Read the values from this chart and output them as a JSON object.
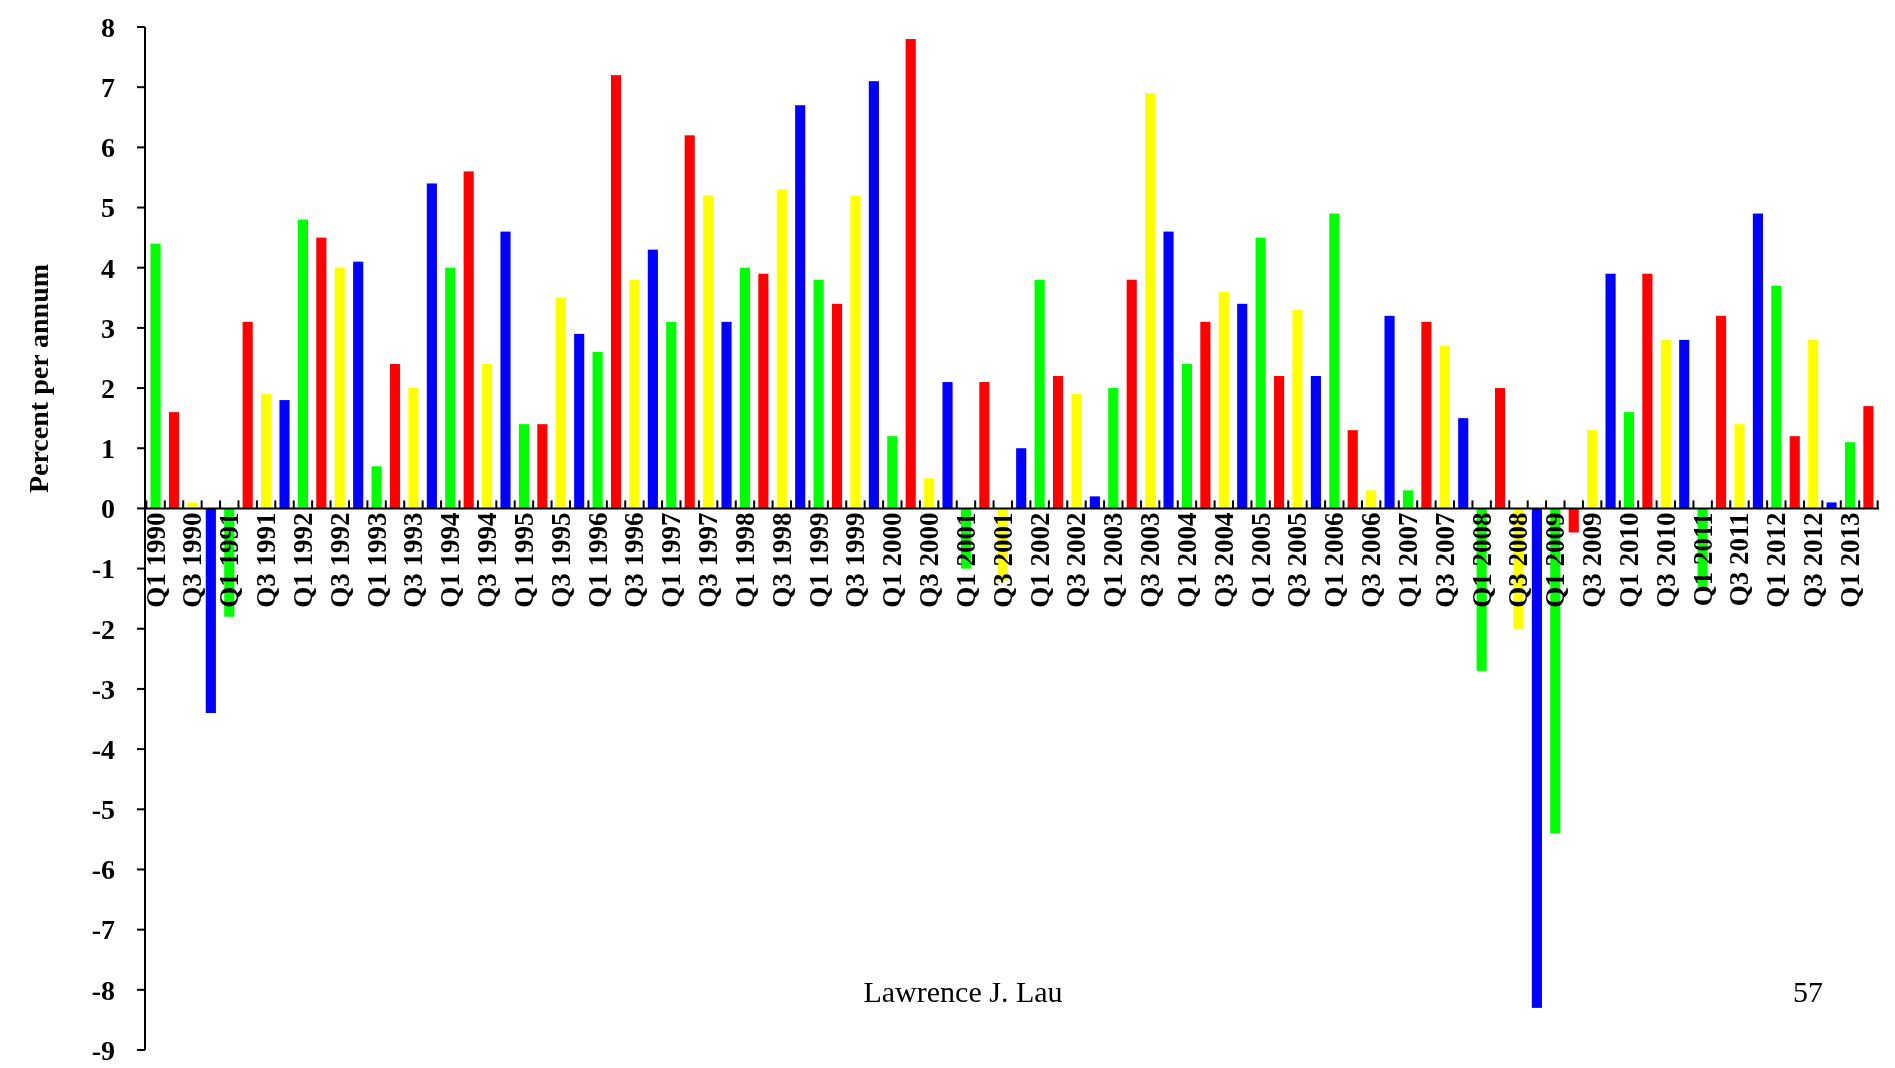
{
  "chart_data": {
    "type": "bar",
    "ylabel": "Percent per annum",
    "categories": [
      "Q1 1990",
      null,
      "Q3 1990",
      null,
      "Q1 1991",
      null,
      "Q3 1991",
      null,
      "Q1 1992",
      null,
      "Q3 1992",
      null,
      "Q1 1993",
      null,
      "Q3 1993",
      null,
      "Q1 1994",
      null,
      "Q3 1994",
      null,
      "Q1 1995",
      null,
      "Q3 1995",
      null,
      "Q1 1996",
      null,
      "Q3 1996",
      null,
      "Q1 1997",
      null,
      "Q3 1997",
      null,
      "Q1 1998",
      null,
      "Q3 1998",
      null,
      "Q1 1999",
      null,
      "Q3 1999",
      null,
      "Q1 2000",
      null,
      "Q3 2000",
      null,
      "Q1 2001",
      null,
      "Q3 2001",
      null,
      "Q1 2002",
      null,
      "Q3 2002",
      null,
      "Q1 2003",
      null,
      "Q3 2003",
      null,
      "Q1 2004",
      null,
      "Q3 2004",
      null,
      "Q1 2005",
      null,
      "Q3 2005",
      null,
      "Q1 2006",
      null,
      "Q3 2006",
      null,
      "Q1 2007",
      null,
      "Q3 2007",
      null,
      "Q1 2008",
      null,
      "Q3 2008",
      null,
      "Q1 2009",
      null,
      "Q3 2009",
      null,
      "Q1 2010",
      null,
      "Q3 2010",
      null,
      "Q1 2011",
      null,
      "Q3 2011",
      null,
      "Q1 2012",
      null,
      "Q3 2012",
      null,
      "Q1 2013",
      null
    ],
    "values": [
      4.4,
      1.6,
      0.1,
      -3.4,
      -1.8,
      3.1,
      1.9,
      1.8,
      4.8,
      4.5,
      4.0,
      4.1,
      0.7,
      2.4,
      2.0,
      5.4,
      4.0,
      5.6,
      2.4,
      4.6,
      1.4,
      1.4,
      3.5,
      2.9,
      2.6,
      7.2,
      3.8,
      4.3,
      3.1,
      6.2,
      5.2,
      3.1,
      4.0,
      3.9,
      5.3,
      6.7,
      3.8,
      3.4,
      5.2,
      7.1,
      1.2,
      7.8,
      0.5,
      2.1,
      -1.0,
      2.1,
      -1.2,
      1.0,
      3.8,
      2.2,
      1.9,
      0.2,
      2.0,
      3.8,
      6.9,
      4.6,
      2.4,
      3.1,
      3.6,
      3.4,
      4.5,
      2.2,
      3.3,
      2.2,
      4.9,
      1.3,
      0.3,
      3.2,
      0.3,
      3.1,
      2.7,
      1.5,
      -2.7,
      2.0,
      -2.0,
      -8.3,
      -5.4,
      -0.4,
      1.3,
      3.9,
      1.6,
      3.9,
      2.8,
      2.8,
      -1.3,
      3.2,
      1.4,
      4.9,
      3.7,
      1.2,
      2.8,
      0.1,
      1.1,
      1.7
    ],
    "colors": [
      "#00ff00",
      "#ff0000",
      "#ffff00",
      "#0000ff",
      "#00ff00",
      "#ff0000",
      "#ffff00",
      "#0000ff",
      "#00ff00",
      "#ff0000",
      "#ffff00",
      "#0000ff",
      "#00ff00",
      "#ff0000",
      "#ffff00",
      "#0000ff",
      "#00ff00",
      "#ff0000",
      "#ffff00",
      "#0000ff",
      "#00ff00",
      "#ff0000",
      "#ffff00",
      "#0000ff",
      "#00ff00",
      "#ff0000",
      "#ffff00",
      "#0000ff",
      "#00ff00",
      "#ff0000",
      "#ffff00",
      "#0000ff",
      "#00ff00",
      "#ff0000",
      "#ffff00",
      "#0000ff",
      "#00ff00",
      "#ff0000",
      "#ffff00",
      "#0000ff",
      "#00ff00",
      "#ff0000",
      "#ffff00",
      "#0000ff",
      "#00ff00",
      "#ff0000",
      "#ffff00",
      "#0000ff",
      "#00ff00",
      "#ff0000",
      "#ffff00",
      "#0000ff",
      "#00ff00",
      "#ff0000",
      "#ffff00",
      "#0000ff",
      "#00ff00",
      "#ff0000",
      "#ffff00",
      "#0000ff",
      "#00ff00",
      "#ff0000",
      "#ffff00",
      "#0000ff",
      "#00ff00",
      "#ff0000",
      "#ffff00",
      "#0000ff",
      "#00ff00",
      "#ff0000",
      "#ffff00",
      "#0000ff",
      "#00ff00",
      "#ff0000",
      "#ffff00",
      "#0000ff",
      "#00ff00",
      "#ff0000",
      "#ffff00",
      "#0000ff",
      "#00ff00",
      "#ff0000",
      "#ffff00",
      "#0000ff",
      "#00ff00",
      "#ff0000",
      "#ffff00",
      "#0000ff",
      "#00ff00",
      "#ff0000",
      "#ffff00",
      "#0000ff",
      "#00ff00",
      "#ff0000"
    ],
    "ylim": [
      -9,
      8
    ],
    "yticks": [
      -9,
      -8,
      -7,
      -6,
      -5,
      -4,
      -3,
      -2,
      -1,
      0,
      1,
      2,
      3,
      4,
      5,
      6,
      7,
      8
    ],
    "grid": false,
    "annotations": [
      "Lawrence J. Lau",
      "57"
    ]
  }
}
